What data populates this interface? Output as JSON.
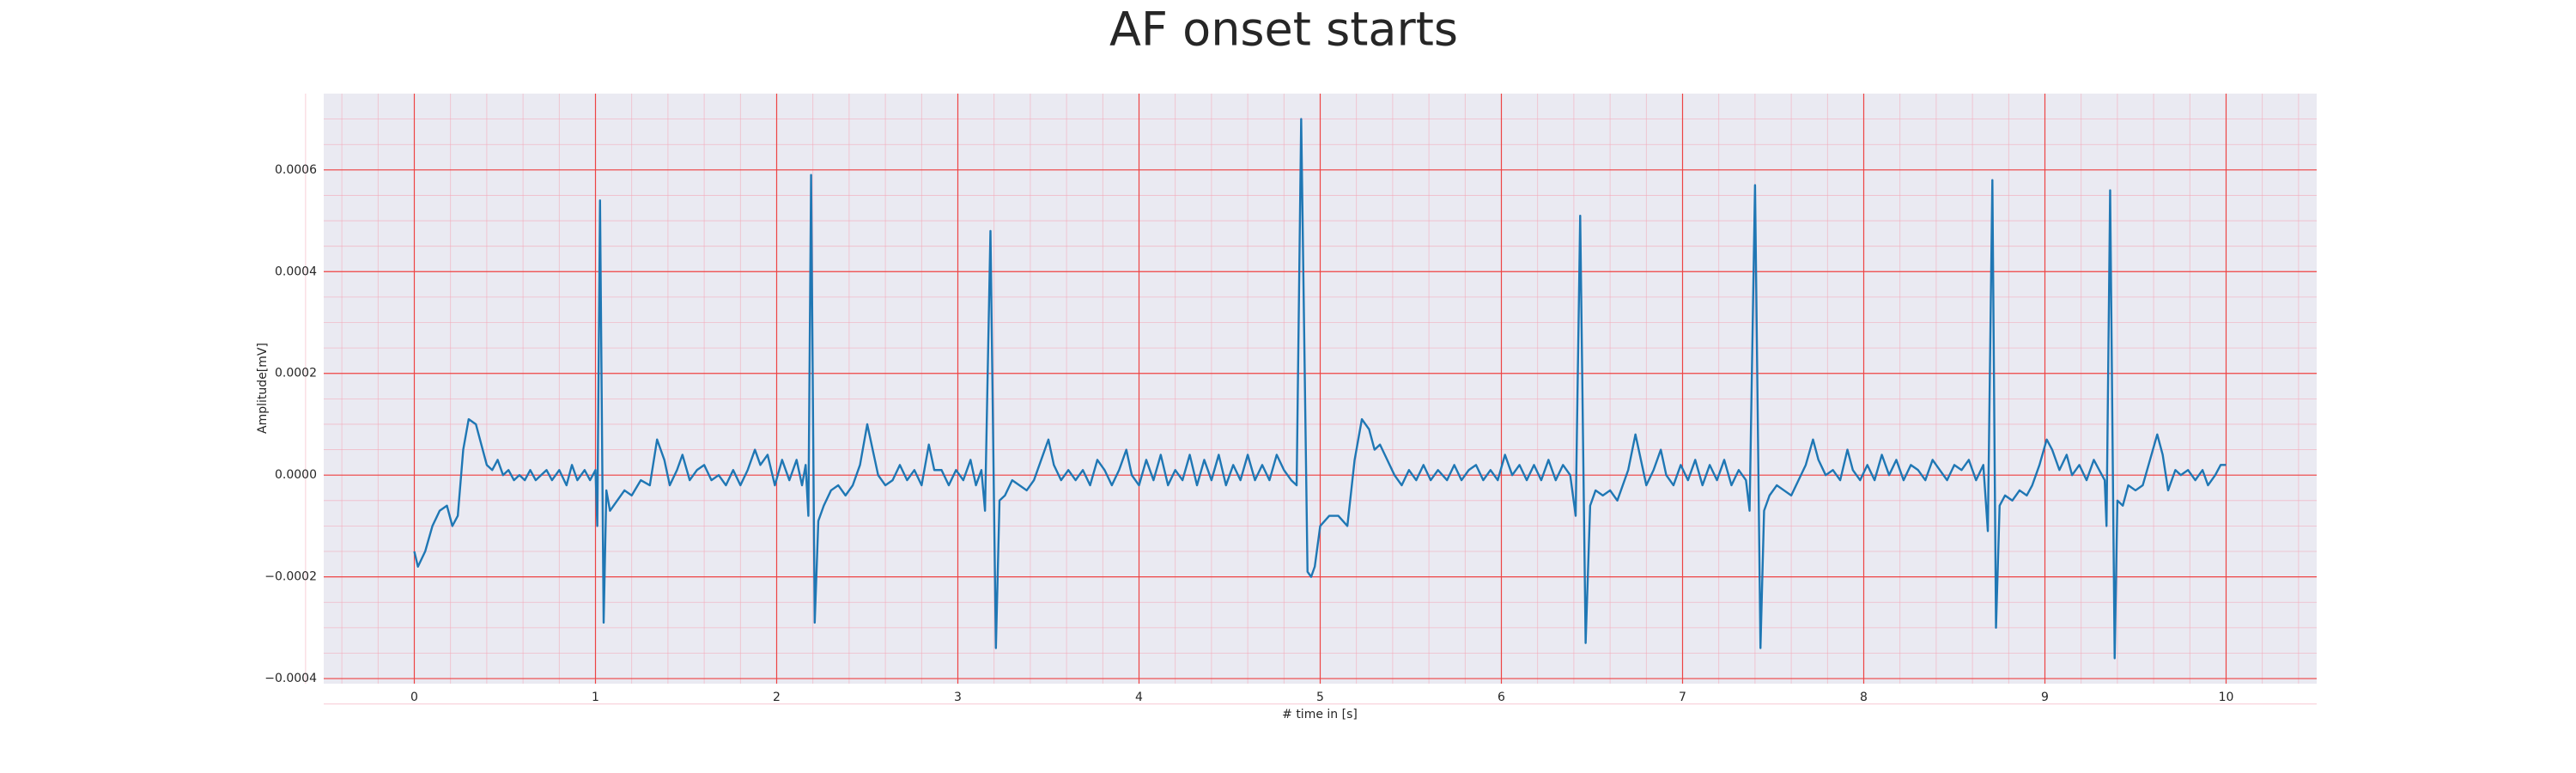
{
  "chart_data": {
    "type": "line",
    "title": "AF onset starts",
    "x_label": "# time in [s]",
    "y_label": "Amplitude[mV]",
    "color": "#1f77b4",
    "grid": true,
    "minor_grid": true,
    "xlim": [
      -0.5,
      10.5
    ],
    "ylim": [
      -0.00041,
      0.00075
    ],
    "xticks": [
      0,
      1,
      2,
      3,
      4,
      5,
      6,
      7,
      8,
      9,
      10
    ],
    "yticks": [
      {
        "value": -0.0004,
        "label": "−0.0004"
      },
      {
        "value": -0.0002,
        "label": "−0.0002"
      },
      {
        "value": 0,
        "label": "0.0000"
      },
      0.0002,
      0.0004,
      0.0006
    ],
    "x": [
      0,
      0.02,
      0.06,
      0.1,
      0.14,
      0.18,
      0.21,
      0.24,
      0.27,
      0.3,
      0.34,
      0.37,
      0.4,
      0.43,
      0.46,
      0.49,
      0.52,
      0.55,
      0.58,
      0.61,
      0.64,
      0.67,
      0.7,
      0.73,
      0.76,
      0.8,
      0.84,
      0.87,
      0.9,
      0.94,
      0.97,
      1.0,
      1.01,
      1.025,
      1.045,
      1.06,
      1.08,
      1.12,
      1.16,
      1.2,
      1.25,
      1.3,
      1.34,
      1.38,
      1.41,
      1.45,
      1.48,
      1.52,
      1.56,
      1.6,
      1.64,
      1.68,
      1.72,
      1.76,
      1.8,
      1.84,
      1.88,
      1.91,
      1.95,
      1.99,
      2.03,
      2.07,
      2.11,
      2.14,
      2.16,
      2.175,
      2.19,
      2.21,
      2.23,
      2.26,
      2.3,
      2.34,
      2.38,
      2.42,
      2.46,
      2.5,
      2.53,
      2.56,
      2.6,
      2.64,
      2.68,
      2.72,
      2.76,
      2.8,
      2.84,
      2.87,
      2.91,
      2.95,
      2.99,
      3.03,
      3.07,
      3.1,
      3.13,
      3.15,
      3.18,
      3.21,
      3.23,
      3.26,
      3.3,
      3.34,
      3.38,
      3.42,
      3.46,
      3.5,
      3.53,
      3.57,
      3.61,
      3.65,
      3.69,
      3.73,
      3.77,
      3.81,
      3.85,
      3.89,
      3.93,
      3.96,
      4.0,
      4.04,
      4.08,
      4.12,
      4.16,
      4.2,
      4.24,
      4.28,
      4.32,
      4.36,
      4.4,
      4.44,
      4.48,
      4.52,
      4.56,
      4.6,
      4.64,
      4.68,
      4.72,
      4.76,
      4.8,
      4.84,
      4.87,
      4.895,
      4.93,
      4.95,
      4.97,
      5.0,
      5.05,
      5.1,
      5.15,
      5.19,
      5.23,
      5.27,
      5.3,
      5.33,
      5.37,
      5.41,
      5.45,
      5.49,
      5.53,
      5.57,
      5.61,
      5.65,
      5.7,
      5.74,
      5.78,
      5.82,
      5.86,
      5.9,
      5.94,
      5.98,
      6.02,
      6.06,
      6.1,
      6.14,
      6.18,
      6.22,
      6.26,
      6.3,
      6.34,
      6.38,
      6.41,
      6.435,
      6.465,
      6.49,
      6.52,
      6.56,
      6.6,
      6.64,
      6.67,
      6.7,
      6.74,
      6.77,
      6.8,
      6.84,
      6.88,
      6.91,
      6.95,
      6.99,
      7.03,
      7.07,
      7.11,
      7.15,
      7.19,
      7.23,
      7.27,
      7.31,
      7.35,
      7.37,
      7.4,
      7.43,
      7.45,
      7.48,
      7.52,
      7.56,
      7.6,
      7.64,
      7.68,
      7.72,
      7.75,
      7.79,
      7.83,
      7.87,
      7.91,
      7.94,
      7.98,
      8.02,
      8.06,
      8.1,
      8.14,
      8.18,
      8.22,
      8.26,
      8.3,
      8.34,
      8.38,
      8.42,
      8.46,
      8.5,
      8.54,
      8.58,
      8.62,
      8.66,
      8.685,
      8.71,
      8.73,
      8.75,
      8.78,
      8.82,
      8.86,
      8.9,
      8.93,
      8.97,
      9.01,
      9.04,
      9.08,
      9.12,
      9.15,
      9.19,
      9.23,
      9.27,
      9.3,
      9.33,
      9.34,
      9.36,
      9.385,
      9.4,
      9.43,
      9.46,
      9.5,
      9.54,
      9.58,
      9.62,
      9.65,
      9.68,
      9.72,
      9.75,
      9.79,
      9.83,
      9.87,
      9.9,
      9.94,
      9.97,
      10.0
    ],
    "values": [
      -0.00015,
      -0.00018,
      -0.00015,
      -0.0001,
      -7e-05,
      -6e-05,
      -0.0001,
      -8e-05,
      5e-05,
      0.00011,
      0.0001,
      6e-05,
      2e-05,
      1e-05,
      3e-05,
      0,
      1e-05,
      -1e-05,
      0,
      -1e-05,
      1e-05,
      -1e-05,
      0,
      1e-05,
      -1e-05,
      1e-05,
      -2e-05,
      2e-05,
      -1e-05,
      1e-05,
      -1e-05,
      1e-05,
      -0.0001,
      0.00054,
      -0.00029,
      -3e-05,
      -7e-05,
      -5e-05,
      -3e-05,
      -4e-05,
      -1e-05,
      -2e-05,
      7e-05,
      3e-05,
      -2e-05,
      1e-05,
      4e-05,
      -1e-05,
      1e-05,
      2e-05,
      -1e-05,
      0,
      -2e-05,
      1e-05,
      -2e-05,
      1e-05,
      5e-05,
      2e-05,
      4e-05,
      -2e-05,
      3e-05,
      -1e-05,
      3e-05,
      -2e-05,
      2e-05,
      -8e-05,
      0.00059,
      -0.00029,
      -9e-05,
      -6e-05,
      -3e-05,
      -2e-05,
      -4e-05,
      -2e-05,
      2e-05,
      0.0001,
      5e-05,
      0,
      -2e-05,
      -1e-05,
      2e-05,
      -1e-05,
      1e-05,
      -2e-05,
      6e-05,
      1e-05,
      1e-05,
      -2e-05,
      1e-05,
      -1e-05,
      3e-05,
      -2e-05,
      1e-05,
      -7e-05,
      0.00048,
      -0.00034,
      -5e-05,
      -4e-05,
      -1e-05,
      -2e-05,
      -3e-05,
      -1e-05,
      3e-05,
      7e-05,
      2e-05,
      -1e-05,
      1e-05,
      -1e-05,
      1e-05,
      -2e-05,
      3e-05,
      1e-05,
      -2e-05,
      1e-05,
      5e-05,
      0,
      -2e-05,
      3e-05,
      -1e-05,
      4e-05,
      -2e-05,
      1e-05,
      -1e-05,
      4e-05,
      -2e-05,
      3e-05,
      -1e-05,
      4e-05,
      -2e-05,
      2e-05,
      -1e-05,
      4e-05,
      -1e-05,
      2e-05,
      -1e-05,
      4e-05,
      1e-05,
      -1e-05,
      -2e-05,
      0.0007,
      -0.00019,
      -0.0002,
      -0.00018,
      -0.0001,
      -8e-05,
      -8e-05,
      -0.0001,
      3e-05,
      0.00011,
      9e-05,
      5e-05,
      6e-05,
      3e-05,
      0,
      -2e-05,
      1e-05,
      -1e-05,
      2e-05,
      -1e-05,
      1e-05,
      -1e-05,
      2e-05,
      -1e-05,
      1e-05,
      2e-05,
      -1e-05,
      1e-05,
      -1e-05,
      4e-05,
      0,
      2e-05,
      -1e-05,
      2e-05,
      -1e-05,
      3e-05,
      -1e-05,
      2e-05,
      0,
      -8e-05,
      0.00051,
      -0.00033,
      -6e-05,
      -3e-05,
      -4e-05,
      -3e-05,
      -5e-05,
      -2e-05,
      1e-05,
      8e-05,
      3e-05,
      -2e-05,
      1e-05,
      5e-05,
      0,
      -2e-05,
      2e-05,
      -1e-05,
      3e-05,
      -2e-05,
      2e-05,
      -1e-05,
      3e-05,
      -2e-05,
      1e-05,
      -1e-05,
      -7e-05,
      0.00057,
      -0.00034,
      -7e-05,
      -4e-05,
      -2e-05,
      -3e-05,
      -4e-05,
      -1e-05,
      2e-05,
      7e-05,
      3e-05,
      0,
      1e-05,
      -1e-05,
      5e-05,
      1e-05,
      -1e-05,
      2e-05,
      -1e-05,
      4e-05,
      0,
      3e-05,
      -1e-05,
      2e-05,
      1e-05,
      -1e-05,
      3e-05,
      1e-05,
      -1e-05,
      2e-05,
      1e-05,
      3e-05,
      -1e-05,
      2e-05,
      -0.00011,
      0.00058,
      -0.0003,
      -6e-05,
      -4e-05,
      -5e-05,
      -3e-05,
      -4e-05,
      -2e-05,
      2e-05,
      7e-05,
      5e-05,
      1e-05,
      4e-05,
      0,
      2e-05,
      -1e-05,
      3e-05,
      1e-05,
      -1e-05,
      -0.0001,
      0.00056,
      -0.00036,
      -5e-05,
      -6e-05,
      -2e-05,
      -3e-05,
      -2e-05,
      3e-05,
      8e-05,
      4e-05,
      -3e-05,
      1e-05,
      0,
      1e-05,
      -1e-05,
      1e-05,
      -2e-05,
      0,
      2e-05,
      2e-05
    ]
  }
}
